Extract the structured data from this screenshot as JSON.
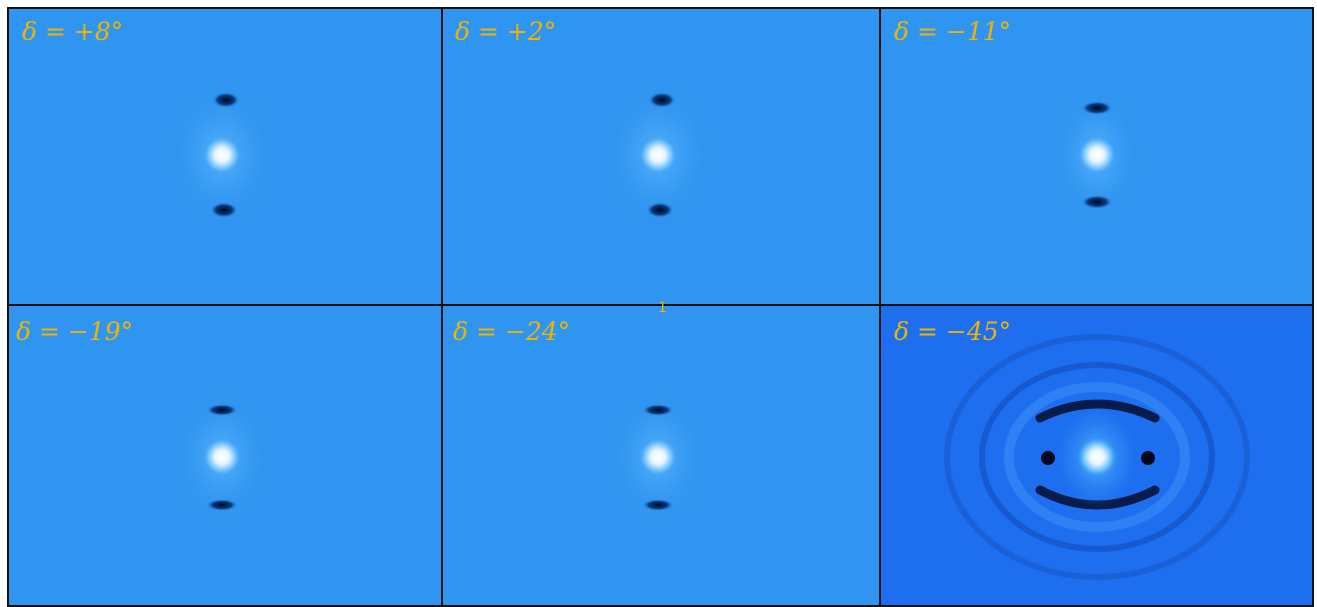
{
  "panels": [
    {
      "label": "δ = +8°"
    },
    {
      "label": "δ = +2°"
    },
    {
      "label": "δ = −11°"
    },
    {
      "label": "δ = −19°"
    },
    {
      "label": "δ = −24°"
    },
    {
      "label": "δ = −45°"
    }
  ],
  "annotation": "1"
}
